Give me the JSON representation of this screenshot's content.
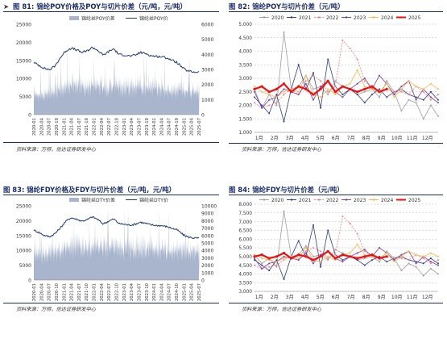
{
  "panels": [
    {
      "marker": "➤",
      "fig_label": "图 81:",
      "title": "锦纶POY价格及POY与切片价差（元/吨，元/吨）",
      "source": "资料来源：万得，信达证券研发中心"
    },
    {
      "marker": "",
      "fig_label": "图 82:",
      "title": "锦纶POY与切片价差（元/吨）",
      "source": "资料来源：万得，信达证券研发中心"
    },
    {
      "marker": "",
      "fig_label": "图 83:",
      "title": "锦纶FDY价格及FDY与切片价差（元/吨，元/吨）",
      "source": "资料来源：万得，信达证券研发中心"
    },
    {
      "marker": "",
      "fig_label": "图 84:",
      "title": "锦纶FDY与切片价差（元/吨）",
      "source": "资料来源：万得，信达证券研发中心"
    }
  ],
  "colors": {
    "area": "#a9b5cc",
    "line": "#1f3a70",
    "y2020": "#9e9e9e",
    "y2021": "#2d3d8c",
    "y2022": "#ff7b7b",
    "y2023": "#7a3fa0",
    "y2024": "#ffb347",
    "y2025": "#ee1111",
    "title": "#1a2d6b"
  },
  "chart_data": [
    {
      "type": "area",
      "series": [
        {
          "name": "锦纶丝POY价差",
          "axis": "right",
          "kind": "area"
        },
        {
          "name": "锦纶丝POY价",
          "axis": "left",
          "kind": "line"
        }
      ],
      "legend": "top",
      "x_ticks": [
        "2020-01",
        "2020-04",
        "2020-07",
        "2020-10",
        "2021-01",
        "2021-04",
        "2021-07",
        "2021-10",
        "2022-01",
        "2022-04",
        "2022-07",
        "2022-10",
        "2023-01",
        "2023-04",
        "2023-07",
        "2023-10",
        "2024-01",
        "2024-04",
        "2024-07",
        "2024-10",
        "2025-01",
        "2025-04",
        "2025-07"
      ],
      "ylim_left": [
        0,
        25000
      ],
      "yticks_left": [
        0,
        5000,
        10000,
        15000,
        20000,
        25000
      ],
      "ylim_right": [
        0,
        6000
      ],
      "yticks_right": [
        0,
        1000,
        2000,
        3000,
        4000,
        5000,
        6000
      ],
      "price": [
        14400,
        13600,
        12800,
        12400,
        13500,
        15800,
        17600,
        18400,
        17900,
        17200,
        17600,
        18600,
        17800,
        16400,
        17400,
        18200,
        16600,
        16500,
        16200,
        16400,
        17200,
        16900,
        16300,
        16100,
        16000,
        15700,
        15000,
        14300,
        12800,
        12000,
        11800,
        11800
      ],
      "spread_base": [
        1900,
        1700,
        1700,
        1800,
        2000,
        2200,
        2300,
        2600,
        2700,
        2500,
        2300,
        2700,
        2600,
        2400,
        2400,
        2600,
        2400,
        2400,
        2300,
        2400,
        2500,
        2400,
        2300,
        2400,
        2200,
        2100,
        2000,
        2200,
        2100,
        2000,
        2100,
        2000
      ]
    },
    {
      "type": "line",
      "series_names": [
        "2020",
        "2021",
        "2022",
        "2023",
        "2024",
        "2025"
      ],
      "legend": "top",
      "x_ticks": [
        "1月",
        "2月",
        "3月",
        "4月",
        "5月",
        "6月",
        "7月",
        "8月",
        "9月",
        "10月",
        "11月",
        "12月"
      ],
      "ylim": [
        1000,
        5000
      ],
      "yticks": [
        1000,
        1500,
        2000,
        2500,
        3000,
        3500,
        4000,
        4500,
        5000
      ],
      "series": [
        {
          "name": "2020",
          "values": [
            2600,
            1900,
            2400,
            2000,
            4700,
            2600,
            2700,
            3100,
            2600,
            2700,
            2400,
            2900,
            2700,
            2600,
            2400,
            2500,
            2600,
            2300,
            2900,
            2500,
            1800,
            2200,
            2100,
            1500,
            2000,
            1600
          ]
        },
        {
          "name": "2021",
          "values": [
            2300,
            2000,
            1700,
            2400,
            1400,
            2600,
            3500,
            2600,
            3200,
            1900,
            3700,
            2700,
            2400,
            2600,
            2400,
            2100,
            2400,
            2600,
            2300,
            2500,
            2600,
            2400,
            2300,
            2200,
            2500,
            2200
          ]
        },
        {
          "name": "2022",
          "values": [
            2100,
            1900,
            2000,
            2100,
            2400,
            2600,
            2400,
            2900,
            3100,
            2900,
            2500,
            2700,
            4400,
            4100,
            3700,
            2900,
            2600,
            2500,
            2600,
            2500,
            2500,
            2400,
            2700,
            2500,
            2200,
            2400
          ]
        },
        {
          "name": "2023",
          "values": [
            2500,
            1900,
            2200,
            2300,
            2600,
            2500,
            2400,
            2800,
            2200,
            2700,
            2900,
            2500,
            2300,
            2600,
            2800,
            3000,
            2600,
            3100,
            2800,
            2400,
            2700,
            2900,
            2200,
            2600,
            2300,
            2100
          ]
        },
        {
          "name": "2024",
          "values": [
            2700,
            2500,
            2400,
            2300,
            2500,
            2600,
            2500,
            3100,
            2400,
            2300,
            2600,
            2400,
            2700,
            2800,
            3300,
            2700,
            2600,
            2500,
            2800,
            2300,
            2600,
            2900,
            2700,
            2600,
            2800,
            2600
          ]
        },
        {
          "name": "2025",
          "values": [
            2600,
            2700,
            2500,
            2600,
            2800,
            2500,
            2700,
            2600,
            2400,
            2600,
            2900,
            2500,
            2700,
            2600,
            2500,
            2600,
            2700,
            2500,
            2600
          ]
        }
      ]
    },
    {
      "type": "area",
      "series": [
        {
          "name": "锦纶丝DTY价差",
          "axis": "right",
          "kind": "area"
        },
        {
          "name": "锦纶丝DTY价",
          "axis": "left",
          "kind": "line"
        }
      ],
      "legend": "top",
      "x_ticks": [
        "2020-01",
        "2020-04",
        "2020-07",
        "2020-10",
        "2021-01",
        "2021-04",
        "2021-07",
        "2021-10",
        "2022-01",
        "2022-04",
        "2022-07",
        "2022-10",
        "2023-01",
        "2023-04",
        "2023-07",
        "2023-10",
        "2024-01",
        "2024-04",
        "2024-07",
        "2024-10",
        "2025-01",
        "2025-04",
        "2025-07"
      ],
      "ylim_left": [
        0,
        25000
      ],
      "yticks_left": [
        0,
        5000,
        10000,
        15000,
        20000,
        25000
      ],
      "ylim_right": [
        0,
        10000
      ],
      "yticks_right": [
        0,
        1000,
        2000,
        3000,
        4000,
        5000,
        6000,
        7000,
        8000,
        9000,
        10000
      ],
      "price": [
        16800,
        16000,
        15000,
        14600,
        15700,
        17600,
        19800,
        21000,
        20500,
        19900,
        20300,
        21300,
        20400,
        18900,
        19800,
        20600,
        19000,
        18800,
        18500,
        18800,
        19500,
        19100,
        18600,
        18400,
        18300,
        18000,
        17400,
        16800,
        15300,
        14500,
        14200,
        14100
      ],
      "spread_base": [
        4700,
        4400,
        4500,
        4700,
        5000,
        5300,
        5500,
        5900,
        6000,
        5700,
        5500,
        6000,
        5900,
        5600,
        5600,
        5900,
        5600,
        5600,
        5500,
        5600,
        5700,
        5600,
        5500,
        5600,
        5300,
        5200,
        5100,
        5300,
        5200,
        5100,
        5200,
        5000
      ]
    },
    {
      "type": "line",
      "series_names": [
        "2020",
        "2021",
        "2022",
        "2023",
        "2024",
        "2025"
      ],
      "legend": "top",
      "x_ticks": [
        "1月",
        "2月",
        "3月",
        "4月",
        "5月",
        "6月",
        "7月",
        "8月",
        "9月",
        "10月",
        "11月",
        "12月"
      ],
      "ylim": [
        3000,
        8000
      ],
      "yticks": [
        3000,
        3500,
        4000,
        4500,
        5000,
        5500,
        6000,
        6500,
        7000,
        7500,
        8000
      ],
      "series": [
        {
          "name": "2020",
          "values": [
            5100,
            4600,
            4900,
            4400,
            7600,
            5000,
            5100,
            5600,
            5000,
            5100,
            4800,
            5400,
            5200,
            5000,
            4800,
            4900,
            5000,
            4700,
            5300,
            4900,
            4200,
            4600,
            4400,
            3900,
            4300,
            4000
          ]
        },
        {
          "name": "2021",
          "values": [
            4800,
            4500,
            4200,
            4800,
            3700,
            5000,
            5900,
            5000,
            6800,
            4400,
            6500,
            5100,
            4800,
            5000,
            4800,
            4500,
            4800,
            5000,
            4700,
            4900,
            5000,
            4800,
            4700,
            4600,
            4900,
            4600
          ]
        },
        {
          "name": "2022",
          "values": [
            4500,
            4300,
            4400,
            4500,
            4800,
            5000,
            4800,
            5300,
            5500,
            5300,
            4900,
            5100,
            7300,
            6900,
            6300,
            5300,
            5000,
            4900,
            5000,
            4900,
            4900,
            4800,
            5100,
            4900,
            4600,
            4800
          ]
        },
        {
          "name": "2023",
          "values": [
            4900,
            4300,
            4600,
            4700,
            5000,
            4900,
            4800,
            5200,
            4600,
            5100,
            5300,
            4900,
            4700,
            5000,
            5200,
            5400,
            5000,
            5500,
            5200,
            4800,
            5100,
            5300,
            4600,
            5000,
            4700,
            4500
          ]
        },
        {
          "name": "2024",
          "values": [
            5100,
            4900,
            4800,
            4700,
            4900,
            5000,
            4900,
            5500,
            4800,
            4700,
            5000,
            4800,
            5100,
            5200,
            5700,
            5100,
            5000,
            4900,
            5200,
            4700,
            5000,
            5300,
            5100,
            5000,
            5200,
            5000
          ]
        },
        {
          "name": "2025",
          "values": [
            5000,
            5100,
            4900,
            5000,
            5200,
            4900,
            5100,
            5000,
            4800,
            5000,
            5300,
            4900,
            5100,
            5000,
            4900,
            5000,
            5100,
            4900,
            5000
          ]
        }
      ]
    }
  ]
}
